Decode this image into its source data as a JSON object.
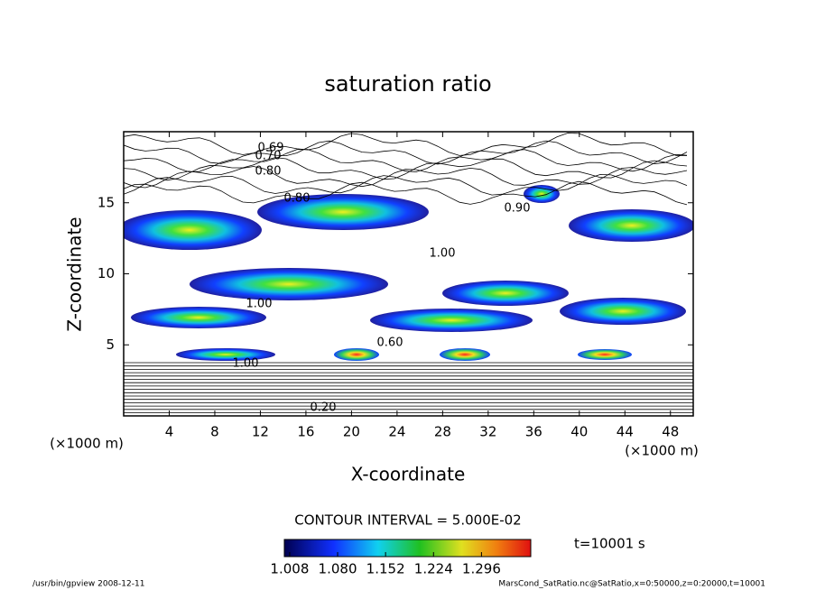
{
  "chart_data": {
    "type": "contour",
    "title": "saturation ratio",
    "xlabel": "X-coordinate",
    "ylabel": "Z-coordinate",
    "x_unit_label": "(×1000 m)",
    "y_unit_label": "(×1000 m)",
    "xlim": [
      0,
      50
    ],
    "ylim": [
      0,
      20
    ],
    "xticks": [
      4,
      8,
      12,
      16,
      20,
      24,
      28,
      32,
      36,
      40,
      44,
      48
    ],
    "yticks": [
      5,
      10,
      15
    ],
    "contour_interval_text": "CONTOUR INTERVAL = 5.000E-02",
    "time_text": "t=10001 s",
    "clim": [
      1.0,
      1.37
    ],
    "colorbar_ticks": [
      {
        "value": 1.008,
        "label": "1.008"
      },
      {
        "value": 1.08,
        "label": "1.080"
      },
      {
        "value": 1.152,
        "label": "1.152"
      },
      {
        "value": 1.224,
        "label": "1.224"
      },
      {
        "value": 1.296,
        "label": "1.296"
      }
    ],
    "contour_labels": [
      {
        "value": 0.69,
        "label": "0.69"
      },
      {
        "value": 0.7,
        "label": "0.70"
      },
      {
        "value": 0.8,
        "label": "0.80"
      },
      {
        "value": 0.8,
        "label": "0.80"
      },
      {
        "value": 0.9,
        "label": "0.90"
      },
      {
        "value": 1,
        "label": "1.00"
      },
      {
        "value": 1,
        "label": "1.00"
      },
      {
        "value": 0.6,
        "label": "0.60"
      },
      {
        "value": 1,
        "label": "1.00"
      },
      {
        "value": 0.2,
        "label": "0.20"
      }
    ],
    "footer_left": "/usr/bin/gpview   2008-12-11",
    "footer_right": "MarsCond_SatRatio.nc@SatRatio,x=0:50000,z=0:20000,t=10001"
  }
}
